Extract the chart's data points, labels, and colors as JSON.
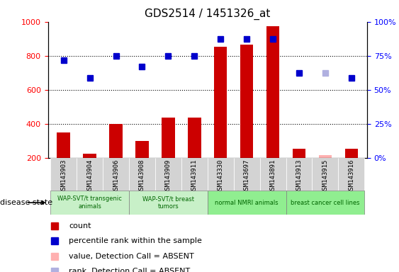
{
  "title": "GDS2514 / 1451326_at",
  "samples": [
    "GSM143903",
    "GSM143904",
    "GSM143906",
    "GSM143908",
    "GSM143909",
    "GSM143911",
    "GSM143330",
    "GSM143697",
    "GSM143891",
    "GSM143913",
    "GSM143915",
    "GSM143916"
  ],
  "count_values": [
    350,
    225,
    400,
    300,
    435,
    435,
    855,
    865,
    975,
    255,
    215,
    255
  ],
  "count_absent": [
    false,
    false,
    false,
    false,
    false,
    false,
    false,
    false,
    false,
    false,
    true,
    false
  ],
  "rank_values": [
    775,
    670,
    800,
    735,
    800,
    800,
    900,
    900,
    900,
    700,
    700,
    670
  ],
  "rank_absent": [
    false,
    false,
    false,
    false,
    false,
    false,
    false,
    false,
    false,
    false,
    true,
    false
  ],
  "groups": [
    {
      "label": "WAP-SVT/t transgenic\nanimals",
      "indices": [
        0,
        1,
        2
      ],
      "color": "#c8f0c8"
    },
    {
      "label": "WAP-SVT/t breast\ntumors",
      "indices": [
        3,
        4,
        5
      ],
      "color": "#c8f0c8"
    },
    {
      "label": "normal NMRI animals",
      "indices": [
        6,
        7,
        8
      ],
      "color": "#90ee90"
    },
    {
      "label": "breast cancer cell lines",
      "indices": [
        9,
        10,
        11
      ],
      "color": "#90ee90"
    }
  ],
  "ylim_left": [
    200,
    1000
  ],
  "ylim_right": [
    0,
    100
  ],
  "bar_color": "#cc0000",
  "bar_absent_color": "#ffb0b0",
  "dot_color": "#0000cc",
  "dot_absent_color": "#b0b0e0",
  "grid_color": "#000000",
  "bg_color": "#ffffff",
  "tick_area_color": "#d3d3d3"
}
